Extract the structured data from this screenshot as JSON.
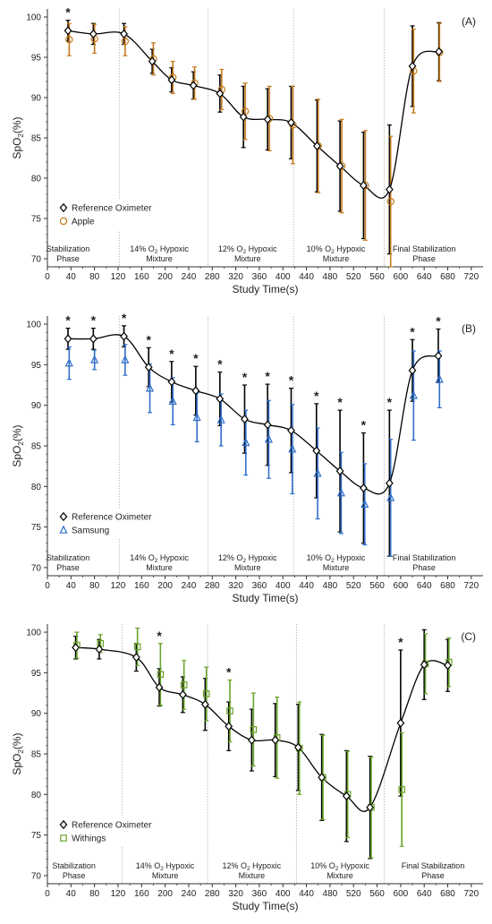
{
  "colors": {
    "reference": "#000000",
    "apple": "#c57a1b",
    "samsung": "#2f6fc9",
    "withings": "#6aa329",
    "phase_line": "#b0b0b0",
    "axis": "#333333"
  },
  "icons": {
    "reference": "diamond-marker-icon",
    "apple": "circle-marker-icon",
    "samsung": "triangle-marker-icon",
    "withings": "square-marker-icon"
  },
  "chart_data": [
    {
      "id": "A",
      "type": "line",
      "panel_label": "(A)",
      "xlabel": "Study Time(s)",
      "ylabel_main": "SpO",
      "ylabel_sub": "2",
      "ylabel_end": "(%)",
      "xlim": [
        0,
        740
      ],
      "ylim": [
        69,
        101
      ],
      "xticks": [
        0,
        40,
        80,
        120,
        160,
        200,
        240,
        280,
        320,
        360,
        400,
        440,
        480,
        520,
        560,
        600,
        640,
        680,
        720
      ],
      "yticks": [
        70,
        75,
        80,
        85,
        90,
        95,
        100
      ],
      "grid": false,
      "legend_position": "bottom-left",
      "phase_boundaries": [
        122,
        273,
        418,
        572
      ],
      "phases": [
        {
          "line1": "Stabilization",
          "line2": "Phase",
          "sub": "",
          "x": 35
        },
        {
          "line1": "14% O",
          "sub": "2",
          "line1b": " Hypoxic",
          "line2": "Mixture",
          "x": 190
        },
        {
          "line1": "12% O",
          "sub": "2",
          "line1b": " Hypoxic",
          "line2": "Mixture",
          "x": 340
        },
        {
          "line1": "10% O",
          "sub": "2",
          "line1b": " Hypoxic",
          "line2": "Mixture",
          "x": 490
        },
        {
          "line1": "Final Stabilization",
          "line2": "Phase",
          "sub": "",
          "x": 640
        }
      ],
      "series": [
        {
          "name": "Reference Oximeter",
          "role": "reference",
          "x": [
            35,
            78,
            130,
            178,
            211,
            248,
            293,
            333,
            374,
            414,
            458,
            497,
            537,
            581,
            620,
            665
          ],
          "y": [
            98.3,
            97.9,
            97.9,
            94.5,
            92.2,
            91.5,
            90.5,
            87.6,
            87.3,
            86.9,
            84.0,
            81.5,
            79.1,
            78.6,
            93.9,
            95.7
          ],
          "err": [
            1.3,
            1.3,
            1.3,
            1.5,
            1.5,
            1.7,
            2.3,
            3.8,
            3.8,
            4.5,
            5.7,
            5.6,
            6.6,
            8.0,
            5.0,
            3.6
          ]
        },
        {
          "name": "Apple",
          "role": "device",
          "x": [
            37,
            80,
            132,
            180,
            213,
            250,
            296,
            336,
            377,
            417,
            460,
            500,
            540,
            583,
            622,
            666
          ],
          "y": [
            97.2,
            97.3,
            97.0,
            94.8,
            92.5,
            91.8,
            91.0,
            88.3,
            87.4,
            86.6,
            84.0,
            81.5,
            79.1,
            77.1,
            93.3,
            95.6
          ],
          "err": [
            2.0,
            1.8,
            1.8,
            2.0,
            2.0,
            2.0,
            2.5,
            3.5,
            4.0,
            4.8,
            5.8,
            5.8,
            6.8,
            8.1,
            5.2,
            3.6
          ]
        }
      ],
      "significant_x": [
        35
      ]
    },
    {
      "id": "B",
      "type": "line",
      "panel_label": "(B)",
      "xlabel": "Study Time(s)",
      "ylabel_main": "SpO",
      "ylabel_sub": "2",
      "ylabel_end": "(%)",
      "xlim": [
        0,
        740
      ],
      "ylim": [
        69,
        101
      ],
      "xticks": [
        0,
        40,
        80,
        120,
        160,
        200,
        240,
        280,
        320,
        360,
        400,
        440,
        480,
        520,
        560,
        600,
        640,
        680,
        720
      ],
      "yticks": [
        70,
        75,
        80,
        85,
        90,
        95,
        100
      ],
      "grid": false,
      "legend_position": "bottom-left",
      "phase_boundaries": [
        122,
        273,
        418,
        572
      ],
      "phases": [
        {
          "line1": "Stabilization",
          "line2": "Phase",
          "sub": "",
          "x": 35
        },
        {
          "line1": "14% O",
          "sub": "2",
          "line1b": " Hypoxic",
          "line2": "Mixture",
          "x": 190
        },
        {
          "line1": "12% O",
          "sub": "2",
          "line1b": " Hypoxic",
          "line2": "Mixture",
          "x": 340
        },
        {
          "line1": "10% O",
          "sub": "2",
          "line1b": " Hypoxic",
          "line2": "Mixture",
          "x": 490
        },
        {
          "line1": "Final Stabilization",
          "line2": "Phase",
          "sub": "",
          "x": 640
        }
      ],
      "series": [
        {
          "name": "Reference Oximeter",
          "role": "reference",
          "x": [
            35,
            78,
            130,
            172,
            211,
            252,
            293,
            335,
            374,
            414,
            457,
            497,
            537,
            581,
            620,
            664
          ],
          "y": [
            98.2,
            98.2,
            98.5,
            94.7,
            92.9,
            91.8,
            90.8,
            88.3,
            87.6,
            86.9,
            84.4,
            81.9,
            79.8,
            80.4,
            94.3,
            96.1
          ],
          "err": [
            1.3,
            1.3,
            1.3,
            2.4,
            2.5,
            3.0,
            3.3,
            4.2,
            5.0,
            5.2,
            5.8,
            7.5,
            6.8,
            9.0,
            3.8,
            3.3
          ]
        },
        {
          "name": "Samsung",
          "role": "device",
          "x": [
            37,
            80,
            132,
            174,
            213,
            254,
            295,
            337,
            376,
            416,
            459,
            499,
            539,
            583,
            622,
            666
          ],
          "y": [
            95.2,
            95.6,
            95.6,
            92.1,
            90.5,
            88.5,
            88.2,
            85.4,
            85.8,
            84.6,
            81.6,
            79.2,
            77.8,
            78.6,
            91.2,
            93.2
          ],
          "err": [
            2.0,
            1.2,
            1.9,
            3.0,
            2.9,
            3.0,
            3.2,
            4.0,
            4.8,
            5.5,
            5.6,
            5.0,
            5.0,
            7.2,
            5.5,
            3.5
          ]
        }
      ],
      "significant_x": [
        35,
        78,
        130,
        172,
        211,
        252,
        293,
        335,
        374,
        414,
        457,
        497,
        537,
        581,
        620,
        664
      ]
    },
    {
      "id": "C",
      "type": "line",
      "panel_label": "(C)",
      "xlabel": "Study Time(s)",
      "ylabel_main": "SpO",
      "ylabel_sub": "2",
      "ylabel_end": "(%)",
      "xlim": [
        0,
        740
      ],
      "ylim": [
        69,
        101
      ],
      "xticks": [
        0,
        40,
        80,
        120,
        160,
        200,
        240,
        280,
        320,
        360,
        400,
        440,
        480,
        520,
        560,
        600,
        640,
        680,
        720
      ],
      "yticks": [
        70,
        75,
        80,
        85,
        90,
        95,
        100
      ],
      "grid": false,
      "legend_position": "bottom-left",
      "phase_boundaries": [
        127,
        272,
        423,
        572
      ],
      "phases": [
        {
          "line1": "Stabilization",
          "line2": "Phase",
          "sub": "",
          "x": 45
        },
        {
          "line1": "14% O",
          "sub": "2",
          "line1b": " Hypoxic",
          "line2": "Mixture",
          "x": 200
        },
        {
          "line1": "12% O",
          "sub": "2",
          "line1b": " Hypoxic",
          "line2": "Mixture",
          "x": 347
        },
        {
          "line1": "10% O",
          "sub": "2",
          "line1b": " Hypoxic",
          "line2": "Mixture",
          "x": 497
        },
        {
          "line1": "Final Stabilization",
          "line2": "Phase",
          "sub": "",
          "x": 655
        }
      ],
      "series": [
        {
          "name": "Reference Oximeter",
          "role": "reference",
          "x": [
            48,
            88,
            151,
            190,
            230,
            268,
            308,
            347,
            387,
            426,
            466,
            508,
            548,
            600,
            640,
            680
          ],
          "y": [
            98.1,
            97.9,
            96.9,
            93.2,
            92.3,
            91.1,
            88.4,
            86.7,
            86.7,
            85.8,
            82.1,
            79.8,
            78.4,
            88.8,
            96.0,
            95.9
          ],
          "err": [
            1.4,
            1.2,
            1.7,
            2.3,
            2.2,
            3.2,
            3.0,
            3.8,
            4.5,
            5.3,
            5.3,
            5.6,
            6.3,
            9.0,
            4.3,
            3.2
          ]
        },
        {
          "name": "Withings",
          "role": "device",
          "x": [
            50,
            90,
            153,
            192,
            232,
            270,
            310,
            350,
            390,
            428,
            468,
            510,
            550,
            602,
            642,
            682
          ],
          "y": [
            98.4,
            98.6,
            98.2,
            94.8,
            93.5,
            92.4,
            90.3,
            88.0,
            87.0,
            85.7,
            82.1,
            80.0,
            78.4,
            80.6,
            96.1,
            96.3
          ],
          "err": [
            1.6,
            1.1,
            2.3,
            3.8,
            3.0,
            3.3,
            3.8,
            4.5,
            5.0,
            5.7,
            5.2,
            5.3,
            6.2,
            7.0,
            3.7,
            3.0
          ]
        }
      ],
      "significant_x": [
        190,
        308,
        600
      ]
    }
  ]
}
